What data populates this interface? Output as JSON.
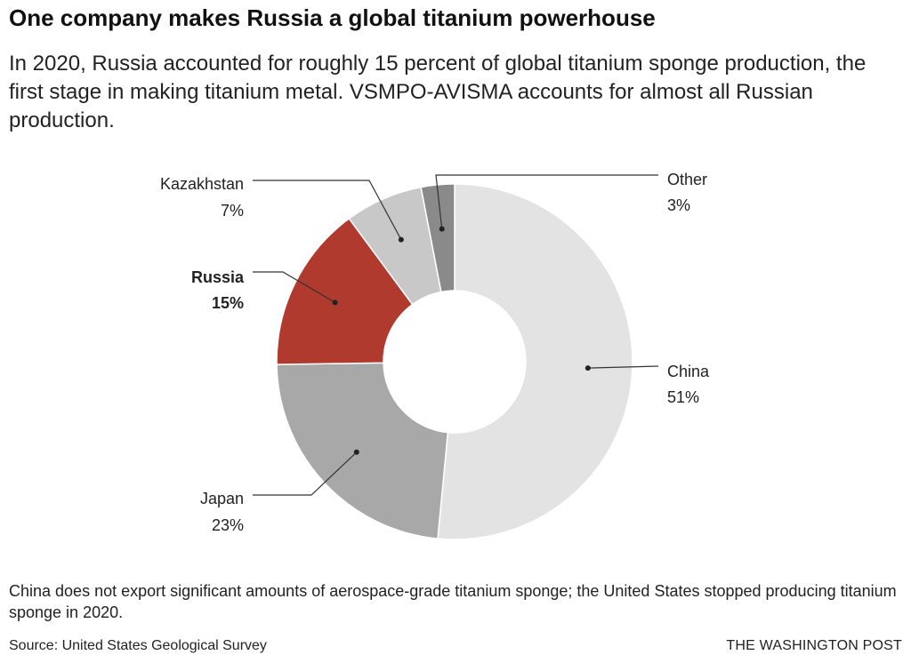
{
  "header": {
    "title": "One company makes Russia a global titanium powerhouse",
    "subtitle": "In 2020, Russia accounted for roughly 15 percent of global titanium sponge production, the first stage in making titanium metal. VSMPO-AVISMA accounts for almost all Russian production."
  },
  "chart_data": {
    "type": "pie",
    "donut": true,
    "categories": [
      "China",
      "Japan",
      "Russia",
      "Kazakhstan",
      "Other"
    ],
    "values": [
      51,
      23,
      15,
      7,
      3
    ],
    "value_labels": [
      "51%",
      "23%",
      "15%",
      "7%",
      "3%"
    ],
    "colors": [
      "#e3e3e3",
      "#a8a8a8",
      "#b03a2e",
      "#c8c8c8",
      "#8a8a8a"
    ],
    "highlight": "Russia"
  },
  "footer": {
    "note": "China does not export significant amounts of aerospace-grade titanium sponge; the United States stopped producing titanium sponge in 2020.",
    "source": "Source: United States Geological Survey",
    "credit": "THE WASHINGTON POST"
  }
}
